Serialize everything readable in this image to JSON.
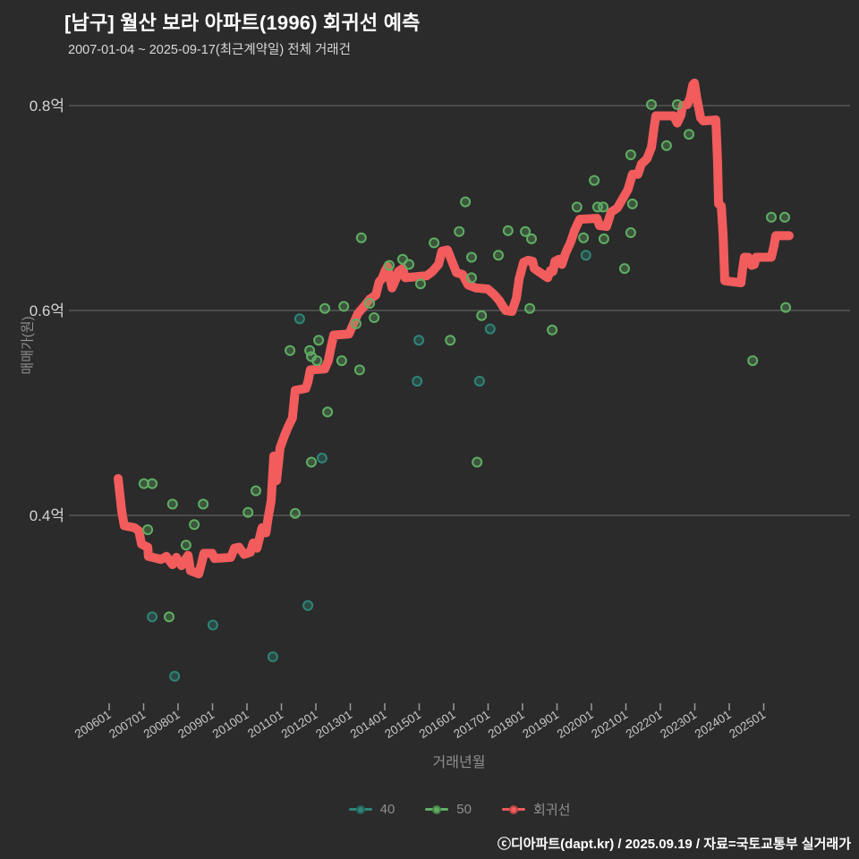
{
  "footer": {
    "credit": "ⓒ디아파트(dapt.kr) / 2025.09.19 / 자료=국토교통부 실거래가"
  },
  "chart_data": {
    "type": "scatter+line",
    "title": "[남구] 월산 보라 아파트(1996) 회귀선 예측",
    "subtitle": "2007-01-04 ~ 2025-09-17(최근계약일) 전체 거래건",
    "xlabel": "거래년월",
    "ylabel": "매매가(원)",
    "y_unit": "억",
    "grid": true,
    "legend_position": "bottom",
    "x_range": [
      2005.9,
      2026.2
    ],
    "y_range": [
      0.21,
      0.83
    ],
    "x_ticks": [
      {
        "t": 2006,
        "label": "200601"
      },
      {
        "t": 2007,
        "label": "200701"
      },
      {
        "t": 2008,
        "label": "200801"
      },
      {
        "t": 2009,
        "label": "200901"
      },
      {
        "t": 2010,
        "label": "201001"
      },
      {
        "t": 2011,
        "label": "201101"
      },
      {
        "t": 2012,
        "label": "201201"
      },
      {
        "t": 2013,
        "label": "201301"
      },
      {
        "t": 2014,
        "label": "201401"
      },
      {
        "t": 2015,
        "label": "201501"
      },
      {
        "t": 2016,
        "label": "201601"
      },
      {
        "t": 2017,
        "label": "201701"
      },
      {
        "t": 2018,
        "label": "201801"
      },
      {
        "t": 2019,
        "label": "201901"
      },
      {
        "t": 2020,
        "label": "202001"
      },
      {
        "t": 2021,
        "label": "202101"
      },
      {
        "t": 2022,
        "label": "202201"
      },
      {
        "t": 2023,
        "label": "202301"
      },
      {
        "t": 2024,
        "label": "202401"
      },
      {
        "t": 2025,
        "label": "202501"
      }
    ],
    "y_ticks": [
      {
        "v": 0.4,
        "label": "0.4억"
      },
      {
        "v": 0.6,
        "label": "0.6억"
      },
      {
        "v": 0.8,
        "label": "0.8억"
      }
    ],
    "series": [
      {
        "name": "40",
        "type": "scatter",
        "color": "#2e8577",
        "points": [
          [
            2012.18,
            0.456
          ],
          [
            2011.53,
            0.592
          ],
          [
            2007.25,
            0.301
          ],
          [
            2009.01,
            0.293
          ],
          [
            2010.75,
            0.262
          ],
          [
            2007.9,
            0.243
          ],
          [
            2011.77,
            0.312
          ],
          [
            2014.99,
            0.571
          ],
          [
            2017.06,
            0.582
          ],
          [
            2014.94,
            0.531
          ],
          [
            2016.75,
            0.531
          ],
          [
            2019.84,
            0.654
          ]
        ]
      },
      {
        "name": "50",
        "type": "scatter",
        "color": "#5fae63",
        "points": [
          [
            2007.01,
            0.431
          ],
          [
            2007.25,
            0.431
          ],
          [
            2007.84,
            0.411
          ],
          [
            2008.73,
            0.411
          ],
          [
            2007.12,
            0.386
          ],
          [
            2008.47,
            0.391
          ],
          [
            2008.23,
            0.371
          ],
          [
            2007.74,
            0.301
          ],
          [
            2010.03,
            0.403
          ],
          [
            2010.26,
            0.424
          ],
          [
            2011.4,
            0.402
          ],
          [
            2011.87,
            0.452
          ],
          [
            2012.34,
            0.501
          ],
          [
            2012.26,
            0.602
          ],
          [
            2012.81,
            0.604
          ],
          [
            2013.56,
            0.607
          ],
          [
            2013.69,
            0.593
          ],
          [
            2012.08,
            0.571
          ],
          [
            2011.25,
            0.561
          ],
          [
            2011.82,
            0.561
          ],
          [
            2011.87,
            0.555
          ],
          [
            2012.03,
            0.551
          ],
          [
            2012.75,
            0.551
          ],
          [
            2013.27,
            0.542
          ],
          [
            2013.17,
            0.587
          ],
          [
            2013.32,
            0.671
          ],
          [
            2014.13,
            0.644
          ],
          [
            2014.52,
            0.65
          ],
          [
            2014.7,
            0.645
          ],
          [
            2015.04,
            0.626
          ],
          [
            2015.43,
            0.666
          ],
          [
            2016.16,
            0.677
          ],
          [
            2016.34,
            0.706
          ],
          [
            2015.9,
            0.571
          ],
          [
            2016.52,
            0.632
          ],
          [
            2016.52,
            0.652
          ],
          [
            2017.3,
            0.654
          ],
          [
            2017.58,
            0.678
          ],
          [
            2018.08,
            0.677
          ],
          [
            2018.26,
            0.67
          ],
          [
            2018.21,
            0.602
          ],
          [
            2018.86,
            0.581
          ],
          [
            2016.68,
            0.452
          ],
          [
            2016.81,
            0.595
          ],
          [
            2019.58,
            0.701
          ],
          [
            2019.77,
            0.671
          ],
          [
            2020.08,
            0.727
          ],
          [
            2020.18,
            0.701
          ],
          [
            2020.34,
            0.701
          ],
          [
            2020.36,
            0.67
          ],
          [
            2020.96,
            0.641
          ],
          [
            2021.14,
            0.752
          ],
          [
            2021.14,
            0.676
          ],
          [
            2021.19,
            0.704
          ],
          [
            2021.74,
            0.801
          ],
          [
            2022.49,
            0.801
          ],
          [
            2022.18,
            0.761
          ],
          [
            2022.83,
            0.772
          ],
          [
            2024.68,
            0.551
          ],
          [
            2025.22,
            0.691
          ],
          [
            2025.61,
            0.691
          ],
          [
            2025.64,
            0.603
          ]
        ]
      },
      {
        "name": "회귀선",
        "type": "line",
        "color": "#f25c5c",
        "points": [
          [
            2006.26,
            0.436
          ],
          [
            2006.31,
            0.421
          ],
          [
            2006.36,
            0.405
          ],
          [
            2006.39,
            0.399
          ],
          [
            2006.44,
            0.39
          ],
          [
            2006.73,
            0.388
          ],
          [
            2006.86,
            0.385
          ],
          [
            2006.94,
            0.372
          ],
          [
            2007.12,
            0.369
          ],
          [
            2007.14,
            0.36
          ],
          [
            2007.51,
            0.357
          ],
          [
            2007.66,
            0.36
          ],
          [
            2007.84,
            0.352
          ],
          [
            2007.95,
            0.359
          ],
          [
            2008.1,
            0.351
          ],
          [
            2008.29,
            0.361
          ],
          [
            2008.36,
            0.346
          ],
          [
            2008.6,
            0.343
          ],
          [
            2008.68,
            0.353
          ],
          [
            2008.75,
            0.363
          ],
          [
            2008.99,
            0.363
          ],
          [
            2009.06,
            0.358
          ],
          [
            2009.53,
            0.359
          ],
          [
            2009.64,
            0.368
          ],
          [
            2009.77,
            0.369
          ],
          [
            2009.92,
            0.362
          ],
          [
            2010.1,
            0.364
          ],
          [
            2010.18,
            0.373
          ],
          [
            2010.29,
            0.368
          ],
          [
            2010.44,
            0.388
          ],
          [
            2010.55,
            0.383
          ],
          [
            2010.62,
            0.399
          ],
          [
            2010.7,
            0.414
          ],
          [
            2010.78,
            0.458
          ],
          [
            2010.86,
            0.434
          ],
          [
            2010.96,
            0.466
          ],
          [
            2011.09,
            0.478
          ],
          [
            2011.19,
            0.486
          ],
          [
            2011.32,
            0.495
          ],
          [
            2011.4,
            0.522
          ],
          [
            2011.71,
            0.524
          ],
          [
            2011.77,
            0.53
          ],
          [
            2011.84,
            0.542
          ],
          [
            2012.26,
            0.543
          ],
          [
            2012.36,
            0.551
          ],
          [
            2012.44,
            0.564
          ],
          [
            2012.52,
            0.576
          ],
          [
            2012.96,
            0.577
          ],
          [
            2013.09,
            0.587
          ],
          [
            2013.22,
            0.597
          ],
          [
            2013.4,
            0.604
          ],
          [
            2013.56,
            0.611
          ],
          [
            2013.74,
            0.615
          ],
          [
            2013.84,
            0.628
          ],
          [
            2013.92,
            0.631
          ],
          [
            2014.0,
            0.638
          ],
          [
            2014.08,
            0.643
          ],
          [
            2014.21,
            0.622
          ],
          [
            2014.34,
            0.632
          ],
          [
            2014.39,
            0.638
          ],
          [
            2014.52,
            0.641
          ],
          [
            2014.6,
            0.632
          ],
          [
            2015.22,
            0.634
          ],
          [
            2015.38,
            0.638
          ],
          [
            2015.56,
            0.645
          ],
          [
            2015.66,
            0.658
          ],
          [
            2015.82,
            0.659
          ],
          [
            2015.95,
            0.648
          ],
          [
            2016.08,
            0.637
          ],
          [
            2016.26,
            0.635
          ],
          [
            2016.42,
            0.625
          ],
          [
            2016.65,
            0.622
          ],
          [
            2016.99,
            0.621
          ],
          [
            2017.19,
            0.615
          ],
          [
            2017.32,
            0.61
          ],
          [
            2017.43,
            0.604
          ],
          [
            2017.51,
            0.6
          ],
          [
            2017.69,
            0.599
          ],
          [
            2017.82,
            0.612
          ],
          [
            2017.9,
            0.631
          ],
          [
            2018.03,
            0.647
          ],
          [
            2018.16,
            0.649
          ],
          [
            2018.29,
            0.648
          ],
          [
            2018.34,
            0.641
          ],
          [
            2018.42,
            0.639
          ],
          [
            2018.73,
            0.632
          ],
          [
            2018.81,
            0.639
          ],
          [
            2018.88,
            0.638
          ],
          [
            2018.94,
            0.648
          ],
          [
            2019.06,
            0.65
          ],
          [
            2019.14,
            0.645
          ],
          [
            2019.25,
            0.656
          ],
          [
            2019.4,
            0.667
          ],
          [
            2019.51,
            0.678
          ],
          [
            2019.66,
            0.689
          ],
          [
            2020.16,
            0.69
          ],
          [
            2020.23,
            0.683
          ],
          [
            2020.44,
            0.682
          ],
          [
            2020.57,
            0.696
          ],
          [
            2020.75,
            0.7
          ],
          [
            2020.94,
            0.711
          ],
          [
            2021.06,
            0.718
          ],
          [
            2021.19,
            0.733
          ],
          [
            2021.35,
            0.733
          ],
          [
            2021.45,
            0.743
          ],
          [
            2021.61,
            0.748
          ],
          [
            2021.74,
            0.759
          ],
          [
            2021.82,
            0.779
          ],
          [
            2021.87,
            0.79
          ],
          [
            2022.39,
            0.79
          ],
          [
            2022.49,
            0.783
          ],
          [
            2022.6,
            0.791
          ],
          [
            2022.65,
            0.8
          ],
          [
            2022.78,
            0.801
          ],
          [
            2022.86,
            0.807
          ],
          [
            2022.94,
            0.82
          ],
          [
            2022.99,
            0.822
          ],
          [
            2023.06,
            0.807
          ],
          [
            2023.17,
            0.788
          ],
          [
            2023.25,
            0.785
          ],
          [
            2023.61,
            0.786
          ],
          [
            2023.66,
            0.746
          ],
          [
            2023.69,
            0.704
          ],
          [
            2023.77,
            0.702
          ],
          [
            2023.82,
            0.674
          ],
          [
            2023.87,
            0.629
          ],
          [
            2024.34,
            0.627
          ],
          [
            2024.39,
            0.641
          ],
          [
            2024.44,
            0.652
          ],
          [
            2024.55,
            0.652
          ],
          [
            2024.65,
            0.644
          ],
          [
            2024.73,
            0.645
          ],
          [
            2024.78,
            0.652
          ],
          [
            2025.22,
            0.652
          ],
          [
            2025.3,
            0.663
          ],
          [
            2025.35,
            0.673
          ],
          [
            2025.74,
            0.673
          ]
        ]
      }
    ]
  }
}
